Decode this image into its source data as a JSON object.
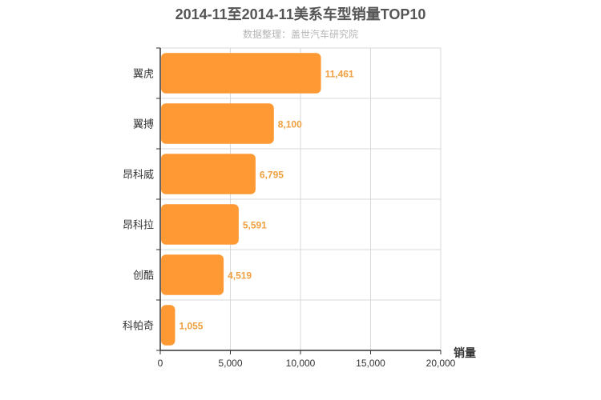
{
  "chart_data": {
    "type": "bar",
    "orientation": "horizontal",
    "title": "2014-11至2014-11美系车型销量TOP10",
    "subtitle": "数据整理：盖世汽车研究院",
    "categories": [
      "翼虎",
      "翼搏",
      "昂科威",
      "昂科拉",
      "创酷",
      "科帕奇"
    ],
    "values": [
      11461,
      8100,
      6795,
      5591,
      4519,
      1055
    ],
    "value_labels": [
      "11,461",
      "8,100",
      "6,795",
      "5,591",
      "4,519",
      "1,055"
    ],
    "xlabel": "销量",
    "ylabel": "",
    "xlim": [
      0,
      20000
    ],
    "x_ticks": [
      0,
      5000,
      10000,
      15000,
      20000
    ],
    "x_tick_labels": [
      "0",
      "5,000",
      "10,000",
      "15,000",
      "20,000"
    ],
    "grid": true,
    "bar_color": "#ff9933",
    "label_color": "#f0a040"
  }
}
